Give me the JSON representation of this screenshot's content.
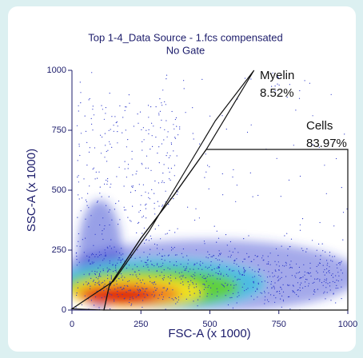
{
  "chart_data": {
    "type": "density",
    "title": "Top 1-4_Data Source - 1.fcs compensated",
    "subtitle": "No Gate",
    "xlabel": "FSC-A (x 1000)",
    "ylabel": "SSC-A (x 1000)",
    "xlim": [
      0,
      1000
    ],
    "ylim": [
      0,
      1000
    ],
    "xticks": [
      0,
      250,
      500,
      750,
      1000
    ],
    "yticks": [
      0,
      250,
      500,
      750,
      1000
    ],
    "gate_color": "#111111",
    "gates": [
      {
        "name": "Myelin",
        "value": 8.52,
        "value_label": "8.52%",
        "x": [
          0,
          150,
          280,
          400,
          520,
          660,
          487,
          370,
          250,
          135,
          116
        ],
        "y": [
          5,
          120,
          330,
          560,
          790,
          1000,
          670,
          480,
          300,
          100,
          0
        ]
      },
      {
        "name": "Cells",
        "value": 83.97,
        "value_label": "83.97%",
        "x": [
          116,
          135,
          250,
          370,
          487,
          1000,
          1000
        ],
        "y": [
          0,
          100,
          300,
          480,
          670,
          670,
          0
        ]
      }
    ]
  }
}
